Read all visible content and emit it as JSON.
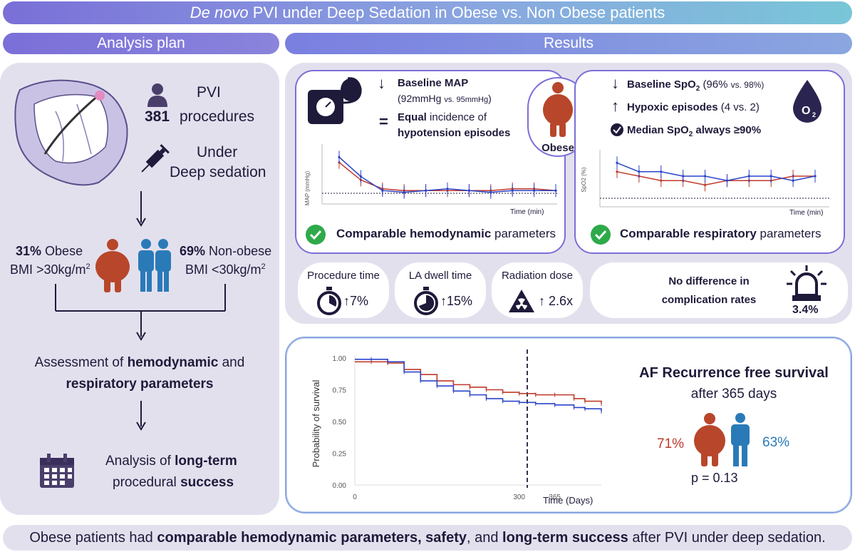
{
  "header": {
    "title_italic": "De novo",
    "title_rest": "PVI under Deep Sedation in Obese vs. Non Obese patients"
  },
  "analysis_plan": {
    "section_title": "Analysis plan",
    "pvi_label_1": "PVI",
    "procedures_count": "381",
    "procedures_label": "procedures",
    "sedation_line1": "Under",
    "sedation_line2": "Deep sedation",
    "obese_pct": "31%",
    "obese_label": "Obese",
    "obese_bmi": "BMI >30kg/m",
    "nonobese_pct": "69%",
    "nonobese_label": "Non-obese",
    "nonobese_bmi": "BMI <30kg/m",
    "sup2": "2",
    "assessment_pre": "Assessment of",
    "assessment_bold1": "hemodynamic",
    "assessment_and": "and",
    "assessment_bold2": "respiratory parameters",
    "analysis_pre": "Analysis of",
    "analysis_bold1": "long-term",
    "analysis_pre2": "procedural",
    "analysis_bold2": "success"
  },
  "results": {
    "section_title": "Results",
    "hemo": {
      "baseline_map": "Baseline MAP",
      "map_values": "(92mmHg",
      "map_vs": "vs. 95mmHg",
      "map_close": ")",
      "equal": "Equal",
      "equal_rest": "incidence of",
      "hypotension": "hypotension episodes",
      "comparable_bold": "Comparable hemodynamic",
      "comparable_rest": "parameters",
      "ylabel": "MAP (mmHg)",
      "xlabel": "Time (min)"
    },
    "obese_badge": "Obese",
    "resp": {
      "baseline_spo2": "Baseline SpO",
      "spo2_values": "(96%",
      "spo2_vs": "vs. 98%)",
      "hypoxic": "Hypoxic episodes",
      "hypoxic_values": "(4 vs. 2)",
      "median": "Median SpO",
      "median_rest": "always ≥90%",
      "o2": "O",
      "comparable_bold": "Comparable respiratory",
      "comparable_rest": "parameters",
      "ylabel": "SpO2 (%)",
      "xlabel": "Time (min)"
    },
    "metrics": [
      {
        "label": "Procedure time",
        "value": "7%"
      },
      {
        "label": "LA dwell time",
        "value": "15%"
      },
      {
        "label": "Radiation dose",
        "value": "2.6x"
      }
    ],
    "complication": {
      "line1": "No difference in",
      "line2": "complication rates",
      "rate": "3.4%"
    },
    "survival": {
      "title": "AF Recurrence free survival",
      "subtitle": "after 365 days",
      "obese_pct": "71%",
      "nonobese_pct": "63%",
      "p_value": "p = 0.13"
    }
  },
  "footer": {
    "pre": "Obese patients had",
    "bold1": "comparable hemodynamic parameters, safety",
    "mid": ", and",
    "bold2": "long-term success",
    "post": "after PVI under deep sedation."
  },
  "colors": {
    "accent": "#7a6fd8",
    "obese": "#c0392b",
    "nonobese": "#2a7ab8",
    "dark": "#1e1a3a",
    "green": "#2eaa4a"
  },
  "chart_data": [
    {
      "type": "line",
      "ylabel": "MAP (mmHg)",
      "xlabel": "Time (min)",
      "series": [
        {
          "name": "Obese",
          "values": [
            92,
            82,
            77,
            76,
            76,
            76,
            76,
            76,
            77,
            77,
            76
          ]
        },
        {
          "name": "Non-obese",
          "values": [
            95,
            84,
            76,
            75,
            76,
            77,
            76,
            75,
            76,
            76,
            76
          ]
        }
      ]
    },
    {
      "type": "line",
      "ylabel": "SpO2 (%)",
      "xlabel": "Time (min)",
      "series": [
        {
          "name": "Obese",
          "values": [
            96,
            95,
            94,
            94,
            93,
            94,
            94,
            94,
            95,
            95
          ]
        },
        {
          "name": "Non-obese",
          "values": [
            98,
            96,
            96,
            95,
            95,
            94,
            95,
            95,
            94,
            95
          ]
        }
      ]
    },
    {
      "type": "line",
      "xlabel": "Time (Days)",
      "ylabel": "Probability of survival",
      "ylim": [
        0,
        1
      ],
      "yticks": [
        "1.00",
        "0.75",
        "0.50",
        "0.25",
        "0.00"
      ],
      "xticks": [
        "0",
        "300",
        "365"
      ],
      "x": [
        0,
        30,
        60,
        90,
        120,
        150,
        180,
        210,
        240,
        270,
        300,
        330,
        365,
        400,
        420,
        450
      ],
      "series": [
        {
          "name": "Obese",
          "values": [
            0.97,
            0.97,
            0.96,
            0.91,
            0.87,
            0.82,
            0.79,
            0.77,
            0.75,
            0.73,
            0.72,
            0.71,
            0.71,
            0.68,
            0.66,
            0.64
          ]
        },
        {
          "name": "Non-obese",
          "values": [
            0.99,
            0.99,
            0.97,
            0.89,
            0.82,
            0.78,
            0.74,
            0.71,
            0.68,
            0.66,
            0.65,
            0.64,
            0.63,
            0.61,
            0.6,
            0.58
          ]
        }
      ]
    }
  ]
}
